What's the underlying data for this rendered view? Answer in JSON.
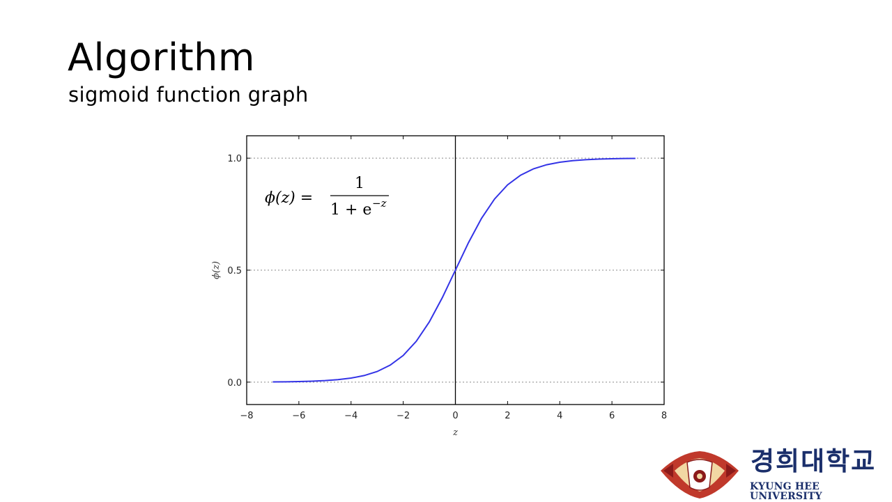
{
  "slide": {
    "title": "Algorithm",
    "subtitle": "sigmoid function graph"
  },
  "chart_data": {
    "type": "line",
    "function": "sigmoid",
    "formula": {
      "lhs": "ϕ(z) =",
      "numerator": "1",
      "denominator": "1 + e",
      "exponent": "−z"
    },
    "x": [
      -7,
      -6.5,
      -6,
      -5.5,
      -5,
      -4.5,
      -4,
      -3.5,
      -3,
      -2.5,
      -2,
      -1.5,
      -1,
      -0.5,
      0,
      0.5,
      1,
      1.5,
      2,
      2.5,
      3,
      3.5,
      4,
      4.5,
      5,
      5.5,
      6,
      6.5,
      6.9
    ],
    "series": [
      {
        "values": [
          0.0009,
          0.0015,
          0.0025,
          0.0041,
          0.0067,
          0.011,
          0.018,
          0.0293,
          0.0474,
          0.0759,
          0.1192,
          0.1824,
          0.2689,
          0.3775,
          0.5,
          0.6225,
          0.7311,
          0.8176,
          0.8808,
          0.9241,
          0.9526,
          0.9707,
          0.982,
          0.989,
          0.9933,
          0.9959,
          0.9975,
          0.9985,
          0.999
        ],
        "color": "#3333e6"
      }
    ],
    "xlabel": "z",
    "ylabel": "ϕ(z)",
    "xlim": [
      -8,
      8
    ],
    "ylim": [
      -0.1,
      1.1
    ],
    "x_ticks": [
      "−8",
      "−6",
      "−4",
      "−2",
      "0",
      "2",
      "4",
      "6",
      "8"
    ],
    "x_tick_values": [
      -8,
      -6,
      -4,
      -2,
      0,
      2,
      4,
      6,
      8
    ],
    "y_ticks": [
      "0.0",
      "0.5",
      "1.0"
    ],
    "y_tick_values": [
      0,
      0.5,
      1
    ],
    "grid": "horizontal dotted at y ticks",
    "vertical_line_at_x": 0
  },
  "logo": {
    "korean": "경희대학교",
    "english": "KYUNG HEE UNIVERSITY",
    "emblem_color": "#c0392b",
    "text_color": "#1b2f6b"
  }
}
